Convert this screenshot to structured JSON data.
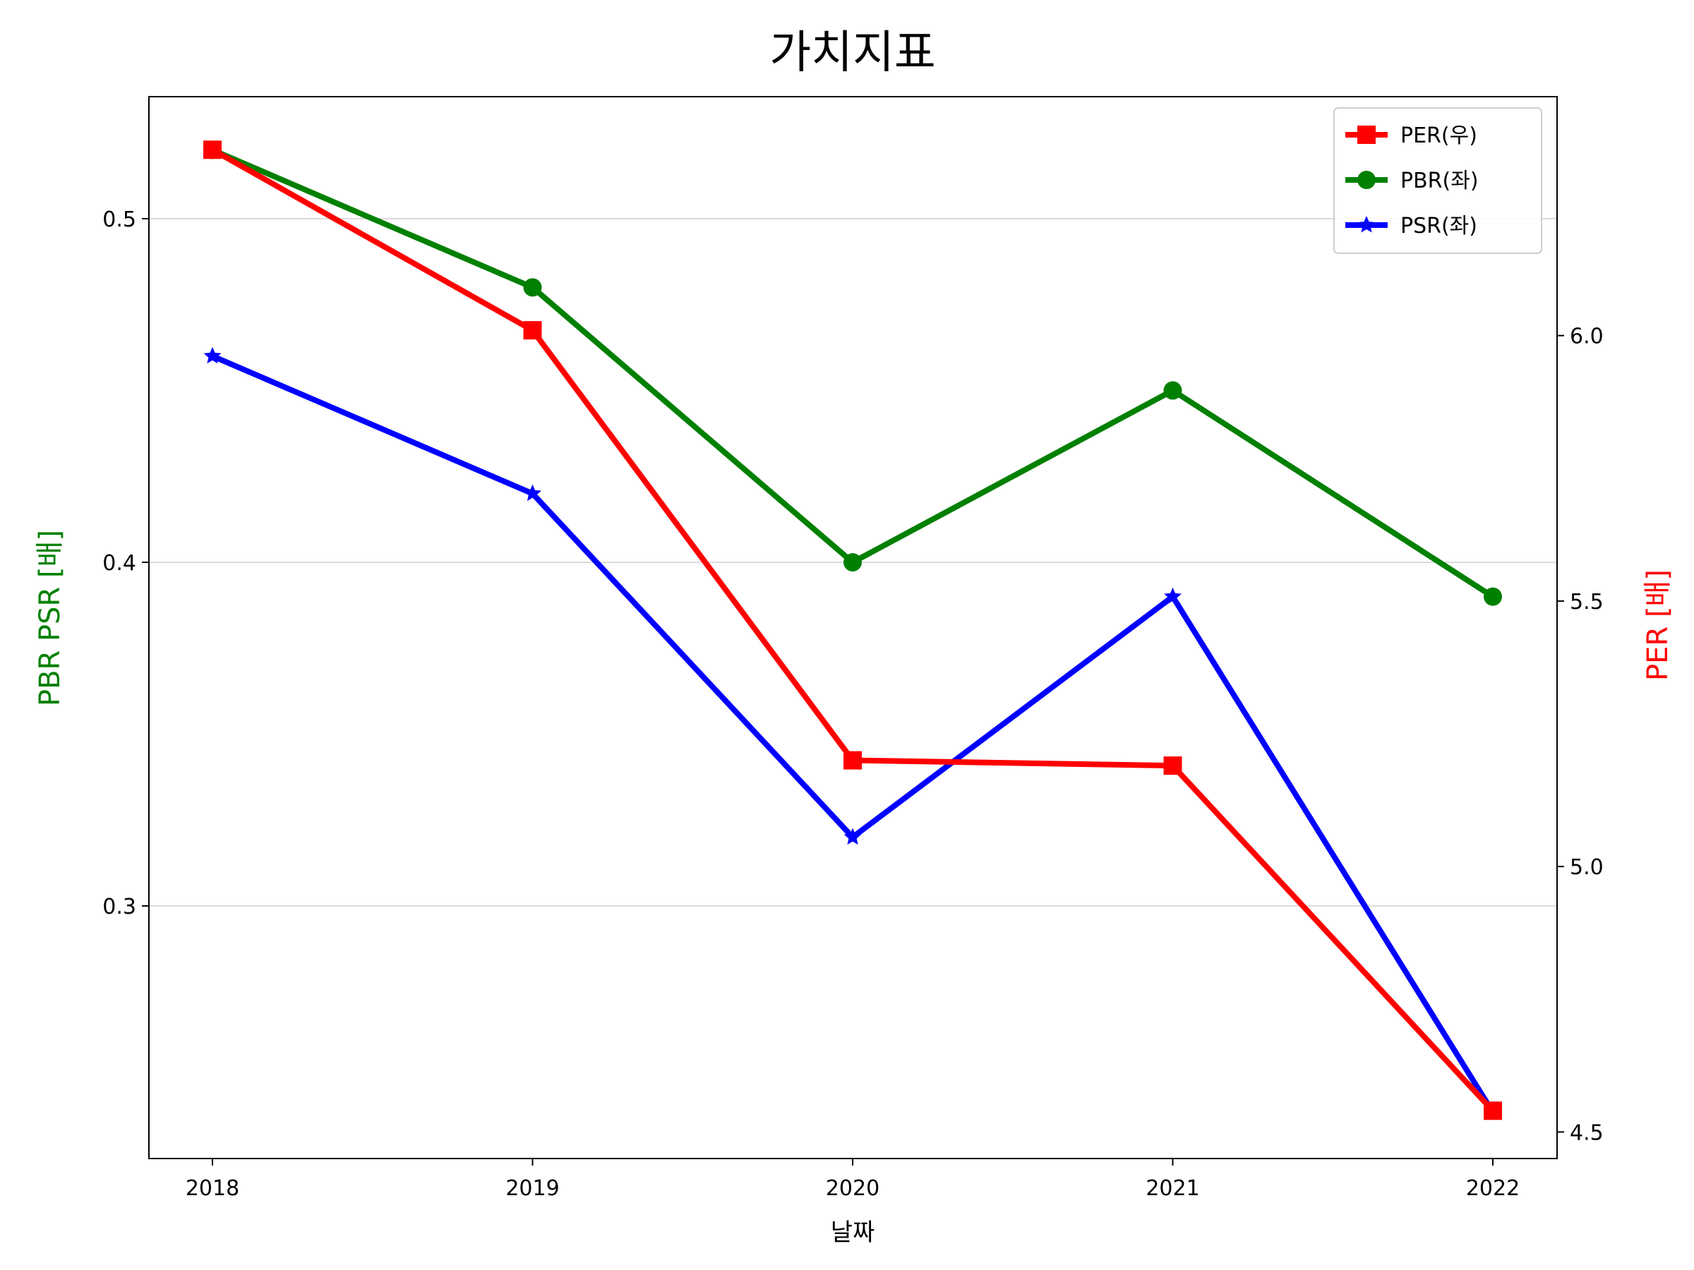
{
  "chart_data": {
    "type": "line",
    "title": "가치지표",
    "xlabel": "날짜",
    "ylabel_left": "PBR PSR [배]",
    "ylabel_right": "PER [배]",
    "categories": [
      "2018",
      "2019",
      "2020",
      "2021",
      "2022"
    ],
    "left_axis": {
      "range": [
        0.2265,
        0.5355
      ],
      "ticks": [
        0.3,
        0.4,
        0.5
      ],
      "tick_labels": [
        "0.3",
        "0.4",
        "0.5"
      ],
      "label_color": "#008000",
      "grid": true
    },
    "right_axis": {
      "range": [
        4.45,
        6.45
      ],
      "ticks": [
        4.5,
        5.0,
        5.5,
        6.0
      ],
      "tick_labels": [
        "4.5",
        "5.0",
        "5.5",
        "6.0"
      ],
      "label_color": "#ff0000"
    },
    "series": [
      {
        "name": "PER(우)",
        "axis": "right",
        "color": "#ff0000",
        "marker": "square",
        "values": [
          6.35,
          6.01,
          5.2,
          5.19,
          4.54
        ]
      },
      {
        "name": "PBR(좌)",
        "axis": "left",
        "color": "#008000",
        "marker": "circle",
        "values": [
          0.52,
          0.48,
          0.4,
          0.45,
          0.39
        ]
      },
      {
        "name": "PSR(좌)",
        "axis": "left",
        "color": "#0000ff",
        "marker": "star",
        "values": [
          0.46,
          0.42,
          0.32,
          0.39,
          0.24
        ]
      }
    ],
    "legend": {
      "position": "top-right",
      "entries": [
        "PER(우)",
        "PBR(좌)",
        "PSR(좌)"
      ]
    }
  }
}
